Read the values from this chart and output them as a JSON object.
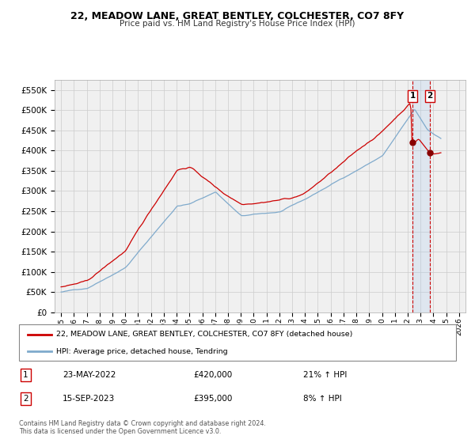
{
  "title": "22, MEADOW LANE, GREAT BENTLEY, COLCHESTER, CO7 8FY",
  "subtitle": "Price paid vs. HM Land Registry's House Price Index (HPI)",
  "legend_entry1": "22, MEADOW LANE, GREAT BENTLEY, COLCHESTER, CO7 8FY (detached house)",
  "legend_entry2": "HPI: Average price, detached house, Tendring",
  "annotation1_label": "1",
  "annotation1_date": "23-MAY-2022",
  "annotation1_price": "£420,000",
  "annotation1_hpi": "21% ↑ HPI",
  "annotation2_label": "2",
  "annotation2_date": "15-SEP-2023",
  "annotation2_price": "£395,000",
  "annotation2_hpi": "8% ↑ HPI",
  "footnote": "Contains HM Land Registry data © Crown copyright and database right 2024.\nThis data is licensed under the Open Government Licence v3.0.",
  "color_red": "#cc0000",
  "color_blue": "#7faacc",
  "color_bg": "#f0f0f0",
  "color_grid": "#cccccc",
  "color_shade": "#ddeeff",
  "ylim": [
    0,
    575000
  ],
  "yticks": [
    0,
    50000,
    100000,
    150000,
    200000,
    250000,
    300000,
    350000,
    400000,
    450000,
    500000,
    550000
  ],
  "sale1_date": 2022.37,
  "sale1_price": 420000,
  "sale2_date": 2023.71,
  "sale2_price": 395000,
  "xlim": [
    1994.5,
    2026.5
  ],
  "xticks": [
    1995,
    1996,
    1997,
    1998,
    1999,
    2000,
    2001,
    2002,
    2003,
    2004,
    2005,
    2006,
    2007,
    2008,
    2009,
    2010,
    2011,
    2012,
    2013,
    2014,
    2015,
    2016,
    2017,
    2018,
    2019,
    2020,
    2021,
    2022,
    2023,
    2024,
    2025,
    2026
  ]
}
